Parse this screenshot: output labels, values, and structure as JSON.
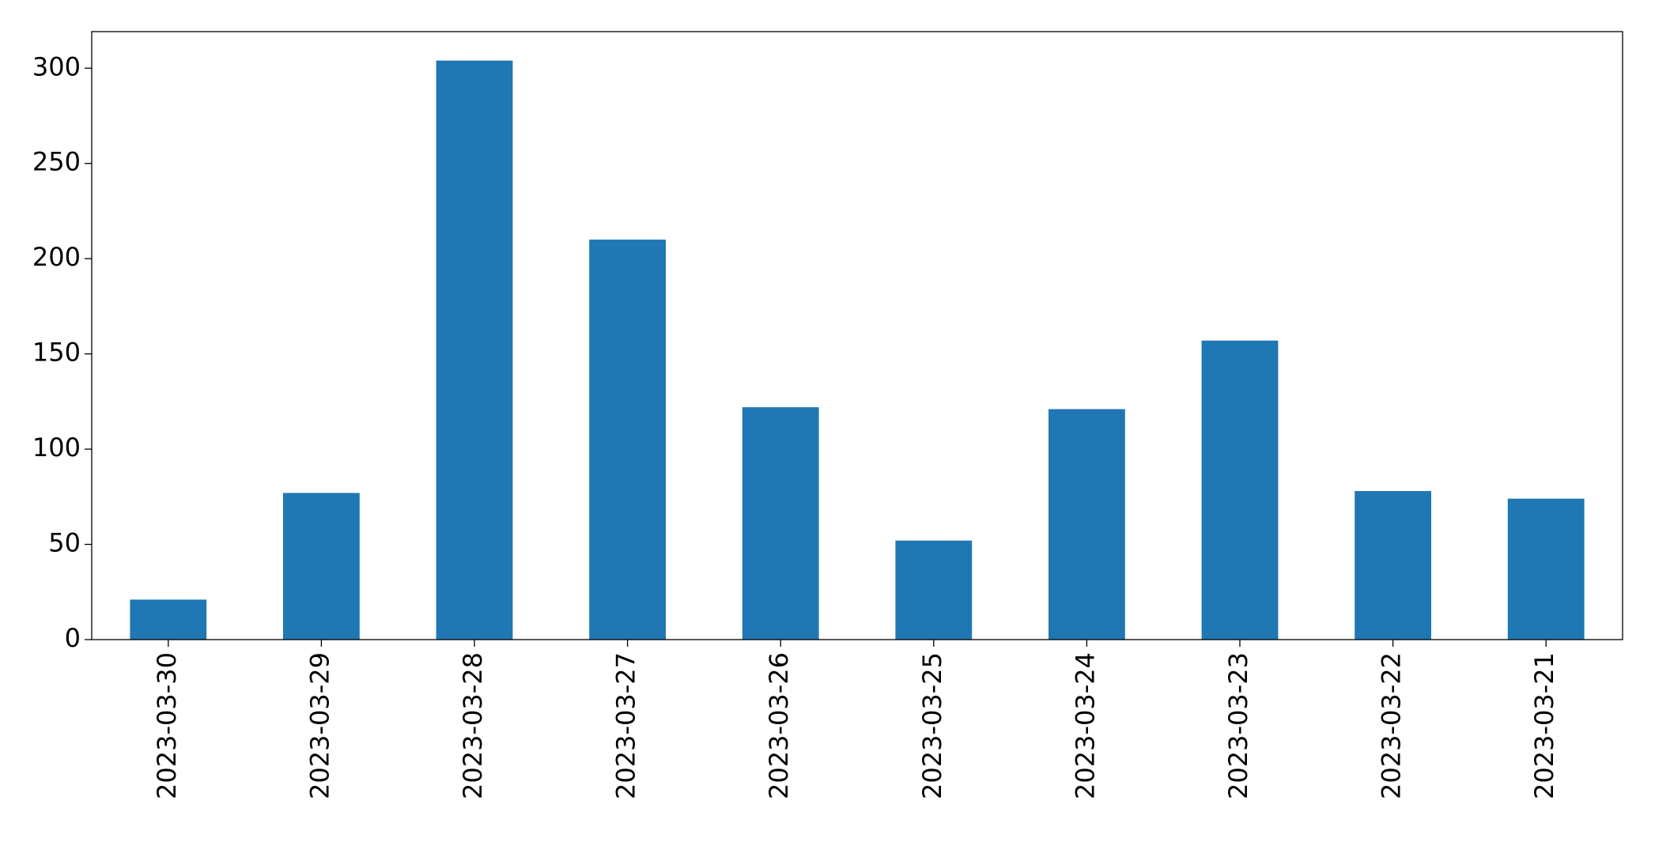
{
  "chart_data": {
    "type": "bar",
    "categories": [
      "2023-03-30",
      "2023-03-29",
      "2023-03-28",
      "2023-03-27",
      "2023-03-26",
      "2023-03-25",
      "2023-03-24",
      "2023-03-23",
      "2023-03-22",
      "2023-03-21"
    ],
    "values": [
      21,
      77,
      304,
      210,
      122,
      52,
      121,
      157,
      78,
      74
    ],
    "color": "#1f77b4",
    "ylim": [
      0,
      319.2
    ],
    "yticks": [
      0,
      50,
      100,
      150,
      200,
      250,
      300
    ],
    "grid": false
  }
}
